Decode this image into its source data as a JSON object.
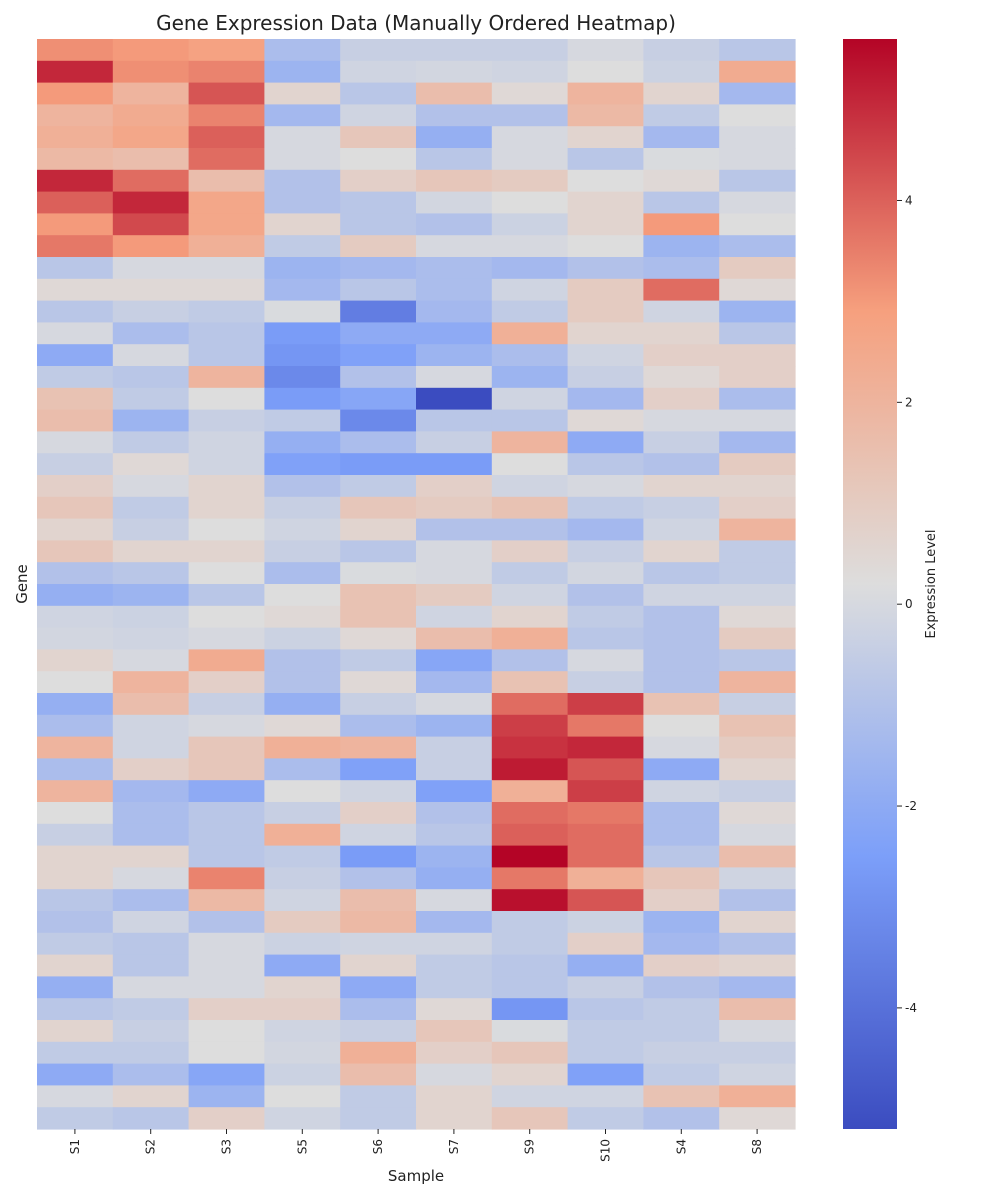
{
  "chart_data": {
    "type": "heatmap",
    "title": "Gene Expression Data (Manually Ordered Heatmap)",
    "xlabel": "Sample",
    "ylabel": "Gene",
    "colorbar_label": "Expression Level",
    "colormap": "coolwarm",
    "vmin": -5.2,
    "vmax": 5.6,
    "colorbar_ticks": [
      -4,
      -2,
      0,
      2,
      4
    ],
    "colorbar_tick_labels": [
      "-4",
      "-2",
      "0",
      "2",
      "4"
    ],
    "columns": [
      "S1",
      "S2",
      "S3",
      "S5",
      "S6",
      "S7",
      "S9",
      "S10",
      "S4",
      "S8"
    ],
    "values": [
      [
        3.2,
        3.0,
        2.8,
        -1.2,
        -0.4,
        -0.4,
        -0.4,
        0.0,
        -0.4,
        -0.8
      ],
      [
        5.0,
        3.2,
        3.4,
        -1.6,
        -0.2,
        -0.1,
        -0.2,
        0.2,
        -0.3,
        2.4
      ],
      [
        3.0,
        2.0,
        4.2,
        0.6,
        -0.8,
        1.6,
        0.4,
        2.0,
        0.6,
        -1.4
      ],
      [
        2.0,
        2.4,
        3.4,
        -1.4,
        -0.2,
        -1.0,
        -1.0,
        1.8,
        -0.6,
        0.2
      ],
      [
        2.2,
        2.6,
        4.0,
        0.0,
        1.2,
        -1.8,
        0.0,
        0.6,
        -1.4,
        0.0
      ],
      [
        1.8,
        1.6,
        3.8,
        0.0,
        0.2,
        -0.8,
        0.0,
        -0.8,
        0.1,
        0.0
      ],
      [
        5.0,
        3.8,
        1.6,
        -1.0,
        0.8,
        1.2,
        1.0,
        0.2,
        0.4,
        -0.8
      ],
      [
        4.0,
        5.0,
        2.6,
        -1.0,
        -0.8,
        -0.1,
        0.2,
        0.6,
        -0.8,
        0.0
      ],
      [
        3.0,
        4.4,
        2.6,
        0.6,
        -0.8,
        -1.0,
        -0.3,
        0.6,
        3.0,
        0.2
      ],
      [
        3.6,
        3.0,
        2.2,
        -0.6,
        1.0,
        0.0,
        0.0,
        0.2,
        -1.6,
        -1.2
      ],
      [
        -0.8,
        0.0,
        0.0,
        -1.6,
        -1.4,
        -1.2,
        -1.4,
        -1.0,
        -1.2,
        1.0
      ],
      [
        0.4,
        0.4,
        0.4,
        -1.4,
        -0.8,
        -1.2,
        -0.2,
        1.0,
        3.8,
        0.4
      ],
      [
        -0.8,
        -0.4,
        -0.6,
        0.1,
        -3.6,
        -1.4,
        -0.6,
        1.0,
        -0.2,
        -1.6
      ],
      [
        0.0,
        -1.2,
        -0.8,
        -2.6,
        -2.0,
        -2.0,
        2.2,
        0.6,
        0.6,
        -0.8
      ],
      [
        -2.0,
        0.0,
        -0.8,
        -2.8,
        -2.4,
        -1.6,
        -1.2,
        -0.2,
        0.8,
        0.8
      ],
      [
        -0.6,
        -0.8,
        2.0,
        -3.2,
        -1.0,
        0.0,
        -1.6,
        -0.4,
        0.4,
        0.8
      ],
      [
        1.4,
        -0.6,
        0.2,
        -2.6,
        -2.2,
        -5.2,
        -0.2,
        -1.4,
        0.8,
        -1.2
      ],
      [
        1.6,
        -1.6,
        -0.4,
        -0.6,
        -3.2,
        -0.8,
        -0.8,
        0.4,
        0.0,
        0.0
      ],
      [
        0.0,
        -0.6,
        -0.2,
        -1.8,
        -1.2,
        -0.4,
        2.0,
        -2.0,
        -0.4,
        -1.4
      ],
      [
        -0.4,
        0.4,
        -0.2,
        -2.4,
        -2.6,
        -2.6,
        0.2,
        -0.8,
        -1.0,
        1.0
      ],
      [
        0.8,
        0.0,
        0.6,
        -1.0,
        -0.6,
        0.8,
        -0.2,
        0.0,
        0.6,
        0.6
      ],
      [
        1.2,
        -0.6,
        0.6,
        -0.4,
        1.2,
        1.0,
        1.4,
        -0.6,
        -0.4,
        0.8
      ],
      [
        0.6,
        -0.4,
        0.2,
        -0.2,
        0.6,
        -1.0,
        -1.0,
        -1.4,
        -0.2,
        2.0
      ],
      [
        1.2,
        0.6,
        0.6,
        -0.4,
        -0.8,
        0.0,
        0.8,
        -0.4,
        0.6,
        -0.6
      ],
      [
        -1.0,
        -0.8,
        0.2,
        -1.2,
        0.1,
        0.0,
        -0.6,
        -0.1,
        -0.8,
        -0.6
      ],
      [
        -1.8,
        -1.6,
        -0.8,
        0.2,
        1.4,
        1.0,
        -0.2,
        -1.0,
        -0.2,
        -0.2
      ],
      [
        -0.2,
        -0.3,
        0.2,
        0.4,
        1.4,
        -0.2,
        0.6,
        -0.6,
        -1.0,
        0.4
      ],
      [
        -0.1,
        -0.2,
        0.0,
        -0.3,
        0.4,
        1.6,
        2.2,
        -0.8,
        -1.0,
        1.0
      ],
      [
        0.6,
        0.0,
        2.4,
        -1.0,
        -0.6,
        -2.2,
        -1.0,
        0.0,
        -1.0,
        -0.8
      ],
      [
        0.2,
        2.0,
        0.8,
        -1.0,
        0.4,
        -1.4,
        1.4,
        -0.4,
        -1.0,
        2.0
      ],
      [
        -1.8,
        1.6,
        -0.4,
        -1.8,
        -0.4,
        0.0,
        3.8,
        4.6,
        1.4,
        -0.4
      ],
      [
        -1.2,
        -0.2,
        0.0,
        0.4,
        -1.2,
        -1.6,
        4.6,
        3.6,
        0.2,
        1.4
      ],
      [
        2.0,
        -0.2,
        1.2,
        2.2,
        2.0,
        -0.4,
        4.8,
        5.0,
        0.0,
        1.0
      ],
      [
        -1.2,
        0.8,
        1.2,
        -1.2,
        -2.4,
        -0.4,
        5.2,
        4.2,
        -2.0,
        0.6
      ],
      [
        2.0,
        -1.4,
        -2.0,
        0.2,
        -0.2,
        -2.4,
        2.2,
        4.6,
        -0.2,
        -0.4
      ],
      [
        0.2,
        -1.2,
        -0.8,
        -0.4,
        0.8,
        -1.0,
        3.8,
        3.6,
        -1.2,
        0.4
      ],
      [
        -0.4,
        -1.2,
        -0.8,
        2.2,
        -0.2,
        -0.8,
        4.0,
        3.8,
        -1.2,
        0.0
      ],
      [
        0.6,
        0.6,
        -0.8,
        -0.6,
        -2.6,
        -1.6,
        5.6,
        3.8,
        -0.8,
        1.6
      ],
      [
        0.6,
        0.0,
        3.4,
        -0.4,
        -1.0,
        -1.8,
        3.6,
        2.2,
        1.2,
        -0.2
      ],
      [
        -0.8,
        -1.2,
        1.8,
        -0.2,
        1.6,
        0.0,
        5.4,
        4.2,
        0.8,
        -1.0
      ],
      [
        -1.0,
        -0.2,
        -1.0,
        1.0,
        1.8,
        -1.4,
        -0.6,
        -0.3,
        -1.6,
        0.6
      ],
      [
        -0.6,
        -0.8,
        0.0,
        -0.3,
        -0.2,
        -0.2,
        -0.6,
        0.8,
        -1.4,
        -1.0
      ],
      [
        0.6,
        -0.8,
        0.0,
        -2.0,
        0.6,
        -0.6,
        -0.8,
        -1.8,
        0.8,
        0.6
      ],
      [
        -1.8,
        0.0,
        0.0,
        0.6,
        -2.0,
        -0.6,
        -0.8,
        -0.4,
        -1.0,
        -1.4
      ],
      [
        -0.8,
        -0.6,
        0.8,
        0.8,
        -1.2,
        0.4,
        -2.8,
        -0.8,
        -0.6,
        1.6
      ],
      [
        0.6,
        -0.4,
        0.2,
        -0.2,
        -0.4,
        1.2,
        0.1,
        -0.6,
        -0.6,
        0.0
      ],
      [
        -0.6,
        -0.6,
        0.2,
        -0.1,
        2.2,
        0.8,
        1.2,
        -0.6,
        -0.4,
        -0.4
      ],
      [
        -2.0,
        -1.2,
        -2.2,
        -0.3,
        1.6,
        0.0,
        0.6,
        -2.4,
        -0.6,
        -0.2
      ],
      [
        0.0,
        0.6,
        -1.6,
        0.2,
        -0.6,
        0.6,
        -0.2,
        -0.2,
        1.4,
        2.2
      ],
      [
        -0.6,
        -0.8,
        0.8,
        -0.2,
        -0.6,
        0.6,
        1.2,
        -0.6,
        -1.0,
        0.4
      ]
    ]
  }
}
